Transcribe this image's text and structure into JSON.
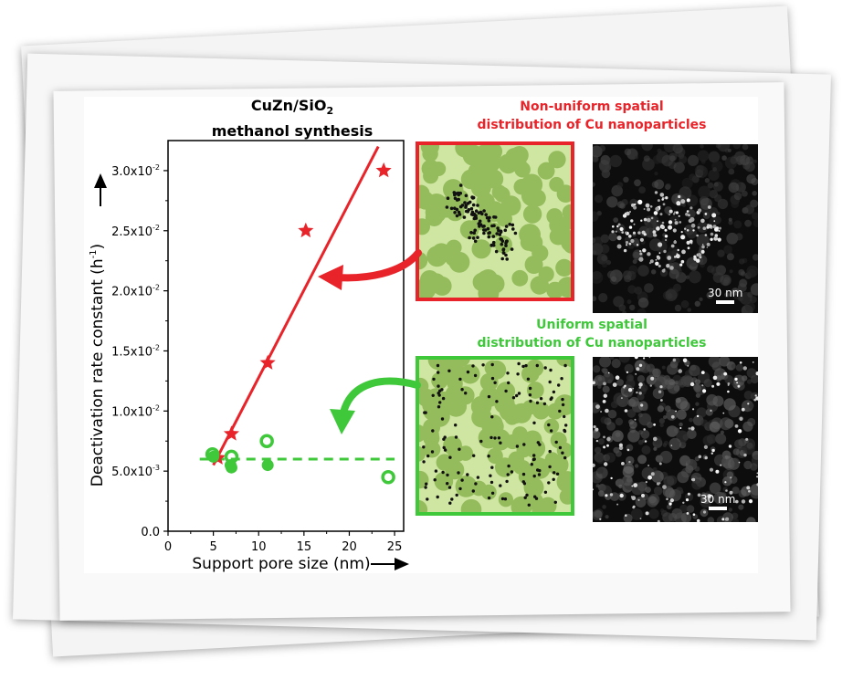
{
  "figure": {
    "title_main": "CuZn/SiO",
    "title_subscript": "2",
    "title_line2": "methanol synthesis",
    "top_caption": [
      "Non-uniform spatial",
      "distribution of Cu nanoparticles"
    ],
    "bottom_caption": [
      "Uniform spatial",
      "distribution of Cu nanoparticles"
    ],
    "top_scalebar": "30 nm",
    "bottom_scalebar": "30 nm",
    "colors": {
      "red": "#e8242a",
      "green": "#3ec83a",
      "support_light": "#cfe6a2",
      "support_dark": "#94bb5c"
    }
  },
  "chart_data": {
    "type": "scatter",
    "xlabel": "Support pore size (nm)",
    "ylabel": "Deactivation rate constant (h",
    "ylabel_sup": "-1",
    "ylabel_end": ")",
    "xlim": [
      0,
      26
    ],
    "ylim": [
      0,
      0.0325
    ],
    "x_ticks": [
      "0",
      "5",
      "10",
      "15",
      "20",
      "25"
    ],
    "y_ticks": [
      "0.0",
      "5.0x10",
      "1.0x10",
      "1.5x10",
      "2.0x10",
      "2.5x10",
      "3.0x10"
    ],
    "y_tick_exponents": [
      "",
      "-3",
      "-2",
      "-2",
      "-2",
      "-2",
      "-2"
    ],
    "series": [
      {
        "marker": "star",
        "color": "#e8242a",
        "x": [
          5.5,
          7.0,
          11.0,
          15.2,
          23.8
        ],
        "y": [
          0.0061,
          0.0081,
          0.014,
          0.025,
          0.03
        ],
        "trend": {
          "x": [
            5.0,
            23.2
          ],
          "y": [
            0.0055,
            0.032
          ]
        }
      },
      {
        "marker": "filled-circle",
        "color": "#3ec83a",
        "x": [
          5.0,
          6.9,
          7.0,
          11.0
        ],
        "y": [
          0.0062,
          0.0055,
          0.0053,
          0.0055
        ]
      },
      {
        "marker": "open-circle",
        "color": "#3ec83a",
        "x": [
          4.9,
          7.0,
          10.9,
          24.3
        ],
        "y": [
          0.0064,
          0.0062,
          0.0075,
          0.0045
        ],
        "trend": {
          "x": [
            3.5,
            25.0
          ],
          "y": [
            0.006,
            0.006
          ],
          "dashed": true
        }
      }
    ]
  }
}
